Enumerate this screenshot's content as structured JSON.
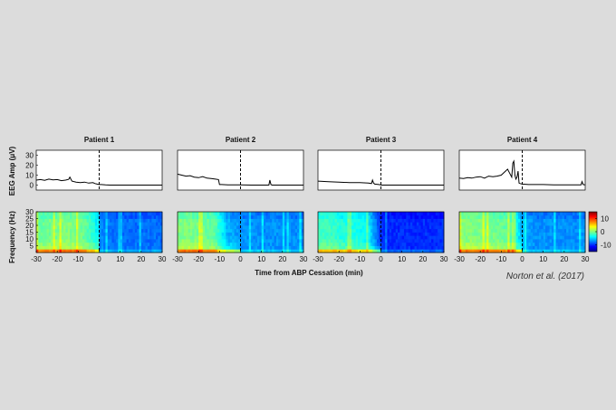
{
  "chart_data": {
    "type": "line",
    "credit": "Norton et al. (2017)",
    "xlabel": "Time from ABP Cessation (min)",
    "amp_ylabel": "EEG Amp (μV)",
    "spec_ylabel": "Frequency (Hz)",
    "xlim": [
      -30,
      30
    ],
    "x_ticks": [
      "-30",
      "-20",
      "-10",
      "0",
      "10",
      "20",
      "30"
    ],
    "amp_ylim": [
      -5,
      35
    ],
    "amp_ticks": [
      "0",
      "10",
      "20",
      "30"
    ],
    "freq_ylim": [
      0,
      30
    ],
    "freq_ticks": [
      "5",
      "10",
      "15",
      "20",
      "25",
      "30"
    ],
    "colorbar": {
      "range": [
        -15,
        15
      ],
      "ticks": [
        "10",
        "0",
        "-10"
      ]
    },
    "panels": [
      {
        "title": "Patient 1",
        "amp": {
          "x": [
            -30,
            -28,
            -26,
            -24,
            -22,
            -20,
            -18,
            -16,
            -14.5,
            -14,
            -13,
            -11,
            -9,
            -7,
            -5,
            -3,
            -2,
            -1,
            0,
            1,
            3,
            5,
            10,
            15,
            20,
            25,
            30
          ],
          "y": [
            5,
            5.5,
            4.8,
            6,
            5.2,
            5.5,
            4.5,
            5,
            5.8,
            8,
            4,
            3,
            2.5,
            3,
            2,
            2.5,
            1.5,
            1,
            0.5,
            0.5,
            0.2,
            0,
            0,
            0,
            0,
            0,
            0
          ]
        },
        "spec": {
          "x": [
            -30,
            -24,
            -18,
            -12,
            -6,
            -2,
            0,
            6,
            12,
            18,
            24,
            30
          ],
          "high": [
            -1,
            -0.5,
            0,
            0,
            -1,
            -3,
            -7,
            -8,
            -8,
            -8,
            -8,
            -8
          ]
        }
      },
      {
        "title": "Patient 2",
        "amp": {
          "x": [
            -30,
            -28,
            -26,
            -24,
            -22,
            -20,
            -18,
            -16,
            -14,
            -12,
            -10.5,
            -10,
            -9,
            -6,
            -3,
            0,
            5,
            10,
            13.5,
            14,
            14.5,
            15,
            20,
            25,
            30
          ],
          "y": [
            11,
            10,
            9,
            9.5,
            8,
            7.5,
            8.5,
            7,
            6.5,
            6,
            5.5,
            0.5,
            0.5,
            0.3,
            0.3,
            0.2,
            0,
            0,
            0,
            5,
            0.5,
            0,
            0,
            0,
            0
          ]
        },
        "spec": {
          "x": [
            -30,
            -24,
            -18,
            -12,
            -10,
            -6,
            0,
            6,
            12,
            18,
            24,
            30
          ],
          "high": [
            0,
            0,
            -0.5,
            -1,
            -3,
            -6,
            -7,
            -7,
            -7,
            -7,
            -7,
            -7
          ]
        }
      },
      {
        "title": "Patient 3",
        "amp": {
          "x": [
            -30,
            -25,
            -20,
            -15,
            -10,
            -6,
            -4.5,
            -4,
            -3.5,
            -3,
            -2,
            -1,
            0,
            0.5,
            5,
            10,
            15,
            20,
            25,
            30
          ],
          "y": [
            4,
            3.5,
            3,
            2.5,
            2.5,
            2,
            1.5,
            5,
            2,
            1,
            0.8,
            0.5,
            0.2,
            0,
            0,
            0,
            0,
            0,
            0,
            0
          ]
        },
        "spec": {
          "x": [
            -30,
            -24,
            -18,
            -12,
            -6,
            -3,
            0,
            6,
            12,
            18,
            24,
            30
          ],
          "high": [
            -2,
            -2,
            -3,
            -3,
            -4,
            -7,
            -10,
            -10,
            -10,
            -10,
            -10,
            -10
          ]
        }
      },
      {
        "title": "Patient 4",
        "amp": {
          "x": [
            -30,
            -28,
            -26,
            -24,
            -22,
            -20,
            -18,
            -16,
            -14,
            -12,
            -10,
            -8,
            -7,
            -6,
            -5,
            -4.5,
            -4,
            -3.5,
            -3,
            -2.5,
            -2,
            -1.5,
            -1,
            0,
            3,
            6,
            10,
            15,
            20,
            25,
            28,
            28.5,
            29,
            30
          ],
          "y": [
            7,
            6.5,
            7.5,
            7,
            8,
            8.5,
            7,
            9,
            8.5,
            9,
            10,
            14,
            16,
            12,
            8,
            22,
            24,
            10,
            6,
            8,
            14,
            2,
            1.5,
            1,
            0.5,
            0.5,
            0.5,
            0.3,
            0.2,
            0.2,
            0.2,
            3.5,
            0.5,
            0.3
          ]
        },
        "spec": {
          "x": [
            -30,
            -24,
            -18,
            -12,
            -6,
            -4,
            0,
            6,
            12,
            18,
            24,
            30
          ],
          "high": [
            0,
            0,
            0,
            -0.5,
            -1,
            -2,
            -6,
            -7,
            -7,
            -7,
            -7,
            -7
          ]
        }
      }
    ]
  }
}
